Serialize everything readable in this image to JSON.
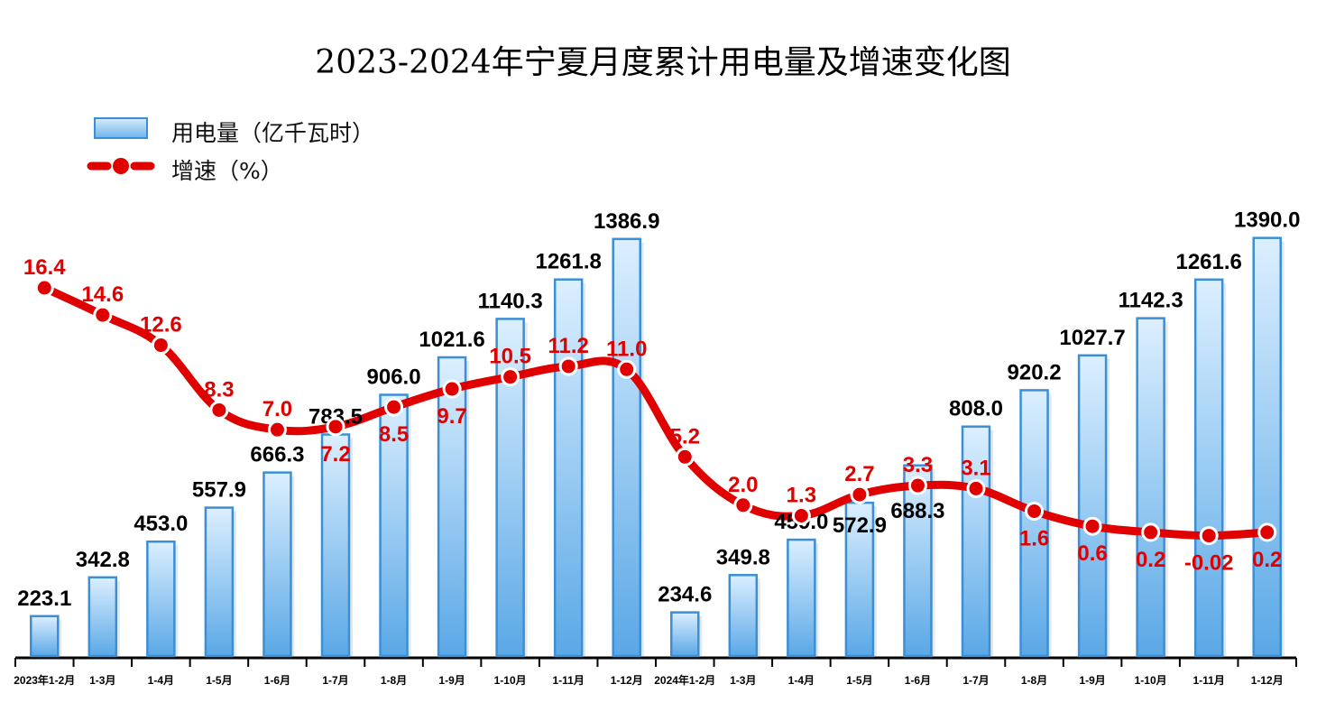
{
  "chart_data": {
    "type": "bar+line",
    "title": "2023-2024年宁夏月度累计用电量及增速变化图",
    "categories": [
      "2023年1-2月",
      "1-3月",
      "1-4月",
      "1-5月",
      "1-6月",
      "1-7月",
      "1-8月",
      "1-9月",
      "1-10月",
      "1-11月",
      "1-12月",
      "2024年1-2月",
      "1-3月",
      "1-4月",
      "1-5月",
      "1-6月",
      "1-7月",
      "1-8月",
      "1-9月",
      "1-10月",
      "1-11月",
      "1-12月"
    ],
    "series": [
      {
        "name": "用电量（亿千瓦时）",
        "type": "bar",
        "color": "#5aa8e6",
        "values": [
          223.1,
          342.8,
          453.0,
          557.9,
          666.3,
          783.5,
          906.0,
          1021.6,
          1140.3,
          1261.8,
          1386.9,
          234.6,
          349.8,
          459.0,
          572.9,
          688.3,
          808.0,
          920.2,
          1027.7,
          1142.3,
          1261.6,
          1390.0
        ],
        "labels": [
          "223.1",
          "342.8",
          "453.0",
          "557.9",
          "666.3",
          "783.5",
          "906.0",
          "1021.6",
          "1140.3",
          "1261.8",
          "1386.9",
          "234.6",
          "349.8",
          "459.0",
          "572.9",
          "688.3",
          "808.0",
          "920.2",
          "1027.7",
          "1142.3",
          "1261.6",
          "1390.0"
        ]
      },
      {
        "name": "增速（%）",
        "type": "line",
        "color": "#e00000",
        "values": [
          16.4,
          14.6,
          12.6,
          8.3,
          7.0,
          7.2,
          8.5,
          9.7,
          10.5,
          11.2,
          11.0,
          5.2,
          2.0,
          1.3,
          2.7,
          3.3,
          3.1,
          1.6,
          0.6,
          0.2,
          -0.02,
          0.2
        ],
        "labels": [
          "16.4",
          "14.6",
          "12.6",
          "8.3",
          "7.0",
          "7.2",
          "8.5",
          "9.7",
          "10.5",
          "11.2",
          "11.0",
          "5.2",
          "2.0",
          "1.3",
          "2.7",
          "3.3",
          "3.1",
          "1.6",
          "0.6",
          "0.2",
          "-0.02",
          "0.2"
        ]
      }
    ],
    "ylim_bar": [
      100,
      1520
    ],
    "ylim_line": [
      -8,
      22.5
    ],
    "grid": false,
    "legend": "top-left"
  }
}
